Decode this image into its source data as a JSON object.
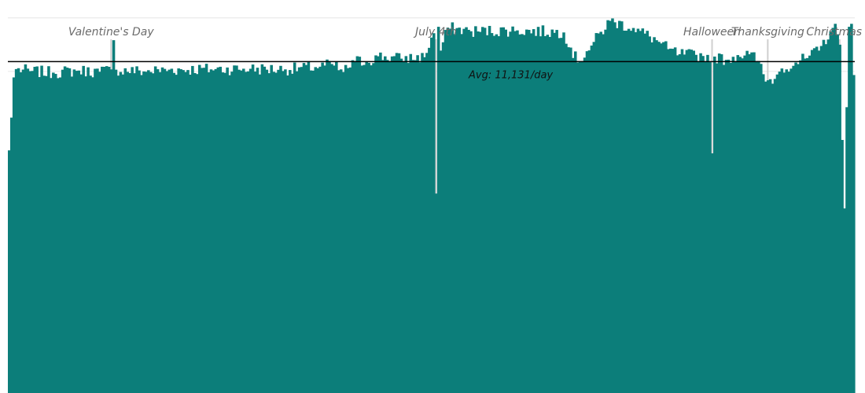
{
  "chart_data": {
    "type": "bar",
    "title": "",
    "xlabel": "",
    "ylabel": "",
    "ylim": [
      0,
      13200
    ],
    "grid": true,
    "gridlines": [
      12600,
      10800
    ],
    "x": "day of year (1-365)",
    "base_values": [
      [
        1,
        8150
      ],
      [
        2,
        9250
      ],
      [
        3,
        10600
      ],
      [
        4,
        10880
      ],
      [
        10,
        10810
      ],
      [
        20,
        10760
      ],
      [
        31,
        10830
      ],
      [
        40,
        10790
      ],
      [
        45,
        10870
      ],
      [
        46,
        11850
      ],
      [
        47,
        10860
      ],
      [
        59,
        10800
      ],
      [
        70,
        10860
      ],
      [
        90,
        10880
      ],
      [
        105,
        10890
      ],
      [
        120,
        10870
      ],
      [
        135,
        10960
      ],
      [
        140,
        11050
      ],
      [
        145,
        10780
      ],
      [
        150,
        11150
      ],
      [
        155,
        11120
      ],
      [
        160,
        11310
      ],
      [
        170,
        11230
      ],
      [
        180,
        11280
      ],
      [
        185,
        12300
      ],
      [
        186,
        12450
      ],
      [
        187,
        11500
      ],
      [
        190,
        12270
      ],
      [
        200,
        12150
      ],
      [
        220,
        12180
      ],
      [
        240,
        12110
      ],
      [
        246,
        11100
      ],
      [
        250,
        11480
      ],
      [
        260,
        12500
      ],
      [
        270,
        12260
      ],
      [
        280,
        11850
      ],
      [
        285,
        11550
      ],
      [
        290,
        11380
      ],
      [
        300,
        11320
      ],
      [
        305,
        11300
      ],
      [
        310,
        11190
      ],
      [
        315,
        11350
      ],
      [
        320,
        11380
      ],
      [
        324,
        11150
      ],
      [
        327,
        10460
      ],
      [
        329,
        10540
      ],
      [
        331,
        10550
      ],
      [
        334,
        10900
      ],
      [
        340,
        11100
      ],
      [
        345,
        11250
      ],
      [
        350,
        11500
      ],
      [
        355,
        12150
      ],
      [
        357,
        12400
      ],
      [
        359,
        11700
      ],
      [
        360,
        8500
      ],
      [
        361,
        6200
      ],
      [
        362,
        9600
      ],
      [
        363,
        12300
      ],
      [
        364,
        12400
      ],
      [
        365,
        10680
      ]
    ],
    "jitter_amplitude": 210,
    "holiday_days": {
      "Valentine's Day": 45,
      "July 4th": 185,
      "Halloween": 304,
      "Thanksgiving": 328,
      "Christmas": 359
    },
    "average": 11131,
    "holidays": [
      {
        "label": "Valentine's Day",
        "day": 45
      },
      {
        "label": "July 4th",
        "day": 185
      },
      {
        "label": "Halloween",
        "day": 304
      },
      {
        "label": "Thanksgiving",
        "day": 328
      },
      {
        "label": "Christmas",
        "day": 359
      }
    ],
    "avg_label": "Avg: 11,131/day"
  },
  "colors": {
    "bar": "#0c7e7a",
    "avg_line": "#000000",
    "holiday_line": "#cfcfcf",
    "gridline": "#e6e6e6"
  }
}
